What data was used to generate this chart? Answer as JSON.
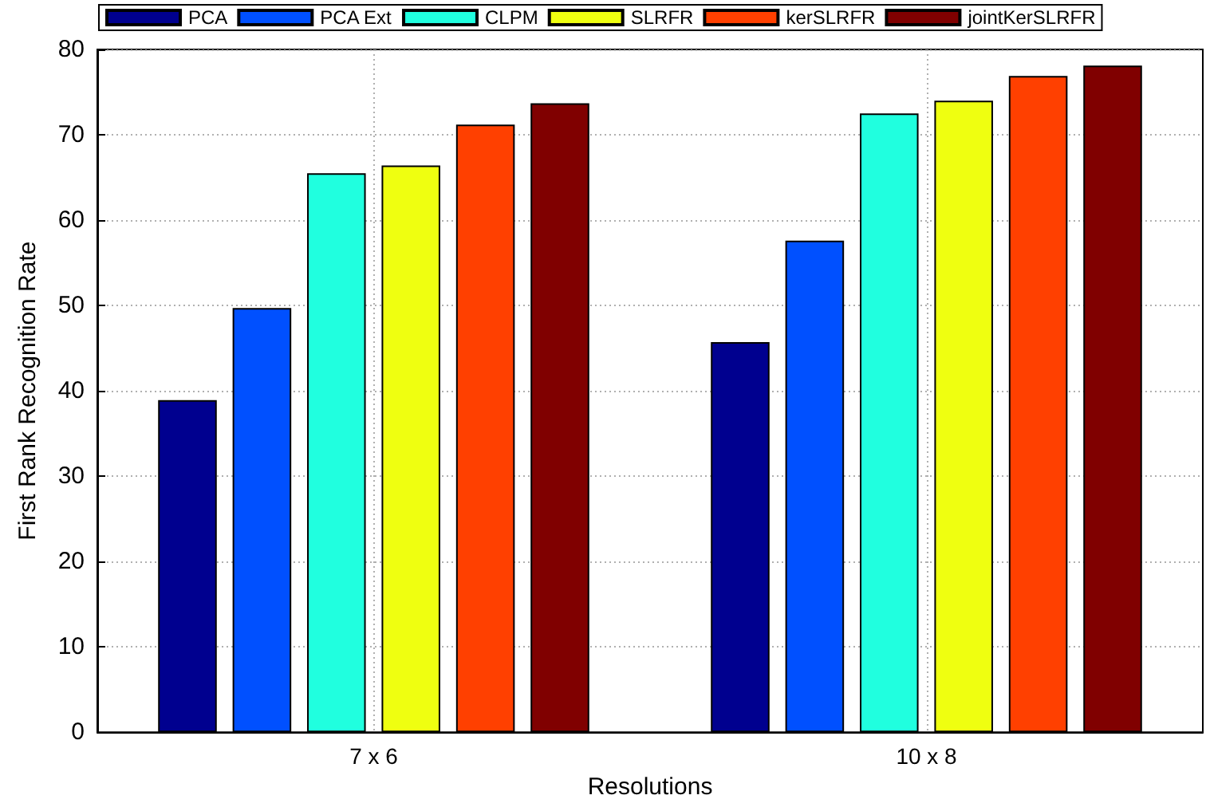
{
  "chart_data": {
    "type": "bar",
    "xlabel": "Resolutions",
    "ylabel": "First Rank Recognition Rate",
    "categories": [
      "7 x 6",
      "10 x 8"
    ],
    "series": [
      {
        "name": "PCA",
        "color": "#00008f",
        "values": [
          38.9,
          45.7
        ]
      },
      {
        "name": "PCA Ext",
        "color": "#0050ff",
        "values": [
          49.7,
          57.6
        ]
      },
      {
        "name": "CLPM",
        "color": "#20ffdf",
        "values": [
          65.5,
          72.5
        ]
      },
      {
        "name": "SLRFR",
        "color": "#efff10",
        "values": [
          66.4,
          74.0
        ]
      },
      {
        "name": "kerSLRFR",
        "color": "#ff4000",
        "values": [
          71.2,
          76.9
        ]
      },
      {
        "name": "jointKerSLRFR",
        "color": "#800000",
        "values": [
          73.7,
          78.1
        ]
      }
    ],
    "ylim": [
      0,
      80
    ],
    "yticks": [
      0,
      10,
      20,
      30,
      40,
      50,
      60,
      70,
      80
    ],
    "grid": true,
    "legend": "top"
  }
}
